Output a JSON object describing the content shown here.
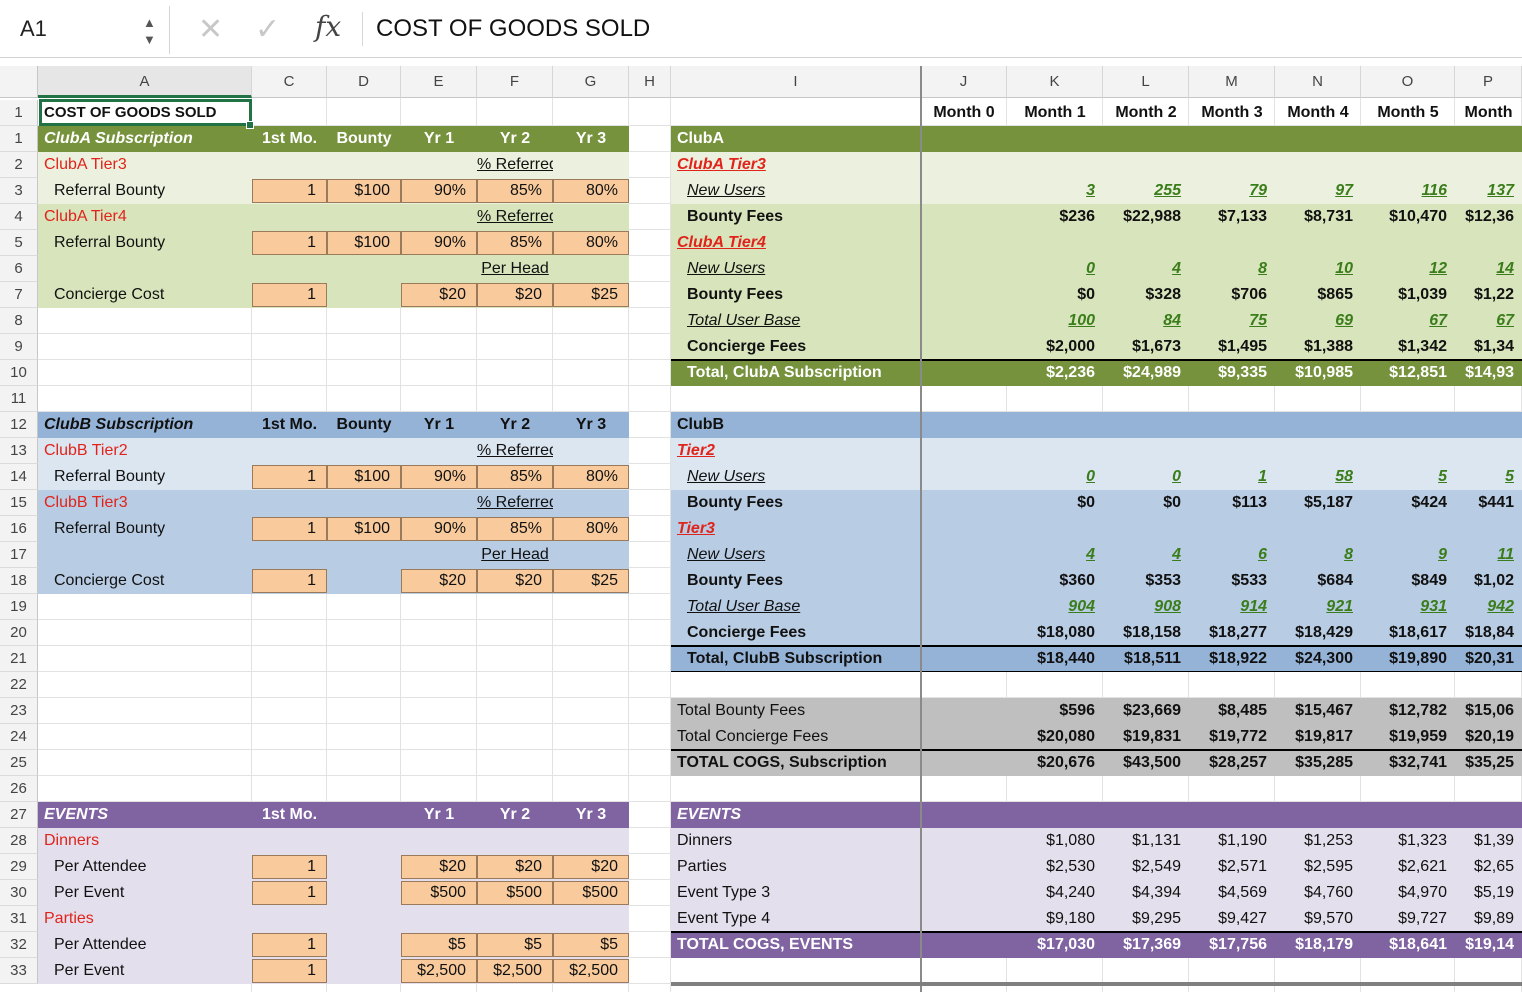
{
  "formula_bar": {
    "cell_ref": "A1",
    "cancel_glyph": "✕",
    "confirm_glyph": "✓",
    "fx_label": "fx",
    "content": "COST OF GOODS SOLD"
  },
  "column_headers": [
    "A",
    "C",
    "D",
    "E",
    "F",
    "G",
    "H",
    "I",
    "J",
    "K",
    "L",
    "M",
    "N",
    "O",
    "P"
  ],
  "row_numbers": [
    "1",
    "1",
    "2",
    "3",
    "4",
    "5",
    "6",
    "7",
    "8",
    "9",
    "10",
    "11",
    "12",
    "13",
    "14",
    "15",
    "16",
    "17",
    "18",
    "19",
    "20",
    "21",
    "22",
    "23",
    "24",
    "25",
    "26",
    "27",
    "28",
    "29",
    "30",
    "31",
    "32",
    "33"
  ],
  "colors": {
    "clubA_header": "#76923c",
    "clubA_light": "#ebf1de",
    "clubA_mid": "#d8e4bc",
    "clubB_header": "#95b3d7",
    "clubB_light": "#dce6f1",
    "clubB_mid": "#b8cce4",
    "totals_gray": "#bfbfbf",
    "events_header": "#8064a2",
    "events_light": "#e4dfec",
    "input_orange": "#f9cb9c"
  },
  "left": {
    "title": "COST OF GOODS SOLD",
    "clubA": {
      "header": [
        "ClubA Subscription",
        "1st Mo.",
        "Bounty",
        "Yr 1",
        "Yr 2",
        "Yr 3"
      ],
      "tier3_label": "ClubA Tier3",
      "tier4_label": "ClubA Tier4",
      "pct_referred": "% Referred",
      "per_head": "Per Head",
      "referral_bounty": "Referral Bounty",
      "concierge_cost": "Concierge Cost",
      "tier3_row": [
        "1",
        "$100",
        "90%",
        "85%",
        "80%"
      ],
      "tier4_row": [
        "1",
        "$100",
        "90%",
        "85%",
        "80%"
      ],
      "concierge_row": [
        "1",
        "$20",
        "$20",
        "$25"
      ]
    },
    "clubB": {
      "header": [
        "ClubB Subscription",
        "1st Mo.",
        "Bounty",
        "Yr 1",
        "Yr 2",
        "Yr 3"
      ],
      "tier2_label": "ClubB Tier2",
      "tier3_label": "ClubB Tier3",
      "pct_referred": "% Referred",
      "per_head": "Per Head",
      "referral_bounty": "Referral Bounty",
      "concierge_cost": "Concierge Cost",
      "tier2_row": [
        "1",
        "$100",
        "90%",
        "85%",
        "80%"
      ],
      "tier3_row": [
        "1",
        "$100",
        "90%",
        "85%",
        "80%"
      ],
      "concierge_row": [
        "1",
        "$20",
        "$20",
        "$25"
      ]
    },
    "events": {
      "header": [
        "EVENTS",
        "1st Mo.",
        "Yr 1",
        "Yr 2",
        "Yr 3"
      ],
      "dinners_label": "Dinners",
      "parties_label": "Parties",
      "per_attendee": "Per Attendee",
      "per_event": "Per Event",
      "dinners_attendee": [
        "1",
        "$20",
        "$20",
        "$20"
      ],
      "dinners_event": [
        "1",
        "$500",
        "$500",
        "$500"
      ],
      "parties_attendee": [
        "1",
        "$5",
        "$5",
        "$5"
      ],
      "parties_event": [
        "1",
        "$2,500",
        "$2,500",
        "$2,500"
      ]
    }
  },
  "right": {
    "months": [
      "Month 0",
      "Month 1",
      "Month 2",
      "Month 3",
      "Month 4",
      "Month 5",
      "Month"
    ],
    "clubA": {
      "header": "ClubA",
      "tier3_label": "ClubA Tier3",
      "tier4_label": "ClubA Tier4",
      "new_users": "New Users",
      "bounty_fees": "Bounty Fees",
      "total_user_base": "Total User Base",
      "concierge_fees": "Concierge Fees",
      "total_label": "Total, ClubA Subscription",
      "t3_new_users": [
        "3",
        "255",
        "79",
        "97",
        "116",
        "137"
      ],
      "t3_bounty": [
        "$236",
        "$22,988",
        "$7,133",
        "$8,731",
        "$10,470",
        "$12,36"
      ],
      "t4_new_users": [
        "0",
        "4",
        "8",
        "10",
        "12",
        "14"
      ],
      "t4_bounty": [
        "$0",
        "$328",
        "$706",
        "$865",
        "$1,039",
        "$1,22"
      ],
      "user_base": [
        "100",
        "84",
        "75",
        "69",
        "67",
        "67"
      ],
      "concierge": [
        "$2,000",
        "$1,673",
        "$1,495",
        "$1,388",
        "$1,342",
        "$1,34"
      ],
      "total": [
        "$2,236",
        "$24,989",
        "$9,335",
        "$10,985",
        "$12,851",
        "$14,93"
      ]
    },
    "clubB": {
      "header": "ClubB",
      "tier2_label": "Tier2",
      "tier3_label": "Tier3",
      "new_users": "New Users",
      "bounty_fees": "Bounty Fees",
      "total_user_base": "Total User Base",
      "concierge_fees": "Concierge Fees",
      "total_label": "Total, ClubB Subscription",
      "t2_new_users": [
        "0",
        "0",
        "1",
        "58",
        "5",
        "5"
      ],
      "t2_bounty": [
        "$0",
        "$0",
        "$113",
        "$5,187",
        "$424",
        "$441"
      ],
      "t3_new_users": [
        "4",
        "4",
        "6",
        "8",
        "9",
        "11"
      ],
      "t3_bounty": [
        "$360",
        "$353",
        "$533",
        "$684",
        "$849",
        "$1,02"
      ],
      "user_base": [
        "904",
        "908",
        "914",
        "921",
        "931",
        "942"
      ],
      "concierge": [
        "$18,080",
        "$18,158",
        "$18,277",
        "$18,429",
        "$18,617",
        "$18,84"
      ],
      "total": [
        "$18,440",
        "$18,511",
        "$18,922",
        "$24,300",
        "$19,890",
        "$20,31"
      ]
    },
    "totals": {
      "bounty_label": "Total Bounty Fees",
      "concierge_label": "Total Concierge Fees",
      "cogs_label": "TOTAL COGS, Subscription",
      "bounty": [
        "$596",
        "$23,669",
        "$8,485",
        "$15,467",
        "$12,782",
        "$15,06"
      ],
      "concierge": [
        "$20,080",
        "$19,831",
        "$19,772",
        "$19,817",
        "$19,959",
        "$20,19"
      ],
      "cogs": [
        "$20,676",
        "$43,500",
        "$28,257",
        "$35,285",
        "$32,741",
        "$35,25"
      ]
    },
    "events": {
      "header": "EVENTS",
      "rows": [
        {
          "label": "Dinners",
          "values": [
            "$1,080",
            "$1,131",
            "$1,190",
            "$1,253",
            "$1,323",
            "$1,39"
          ]
        },
        {
          "label": "Parties",
          "values": [
            "$2,530",
            "$2,549",
            "$2,571",
            "$2,595",
            "$2,621",
            "$2,65"
          ]
        },
        {
          "label": "Event Type 3",
          "values": [
            "$4,240",
            "$4,394",
            "$4,569",
            "$4,760",
            "$4,970",
            "$5,19"
          ]
        },
        {
          "label": "Event Type 4",
          "values": [
            "$9,180",
            "$9,295",
            "$9,427",
            "$9,570",
            "$9,727",
            "$9,89"
          ]
        }
      ],
      "total_label": "TOTAL COGS, EVENTS",
      "total": [
        "$17,030",
        "$17,369",
        "$17,756",
        "$18,179",
        "$18,641",
        "$19,14"
      ]
    }
  }
}
